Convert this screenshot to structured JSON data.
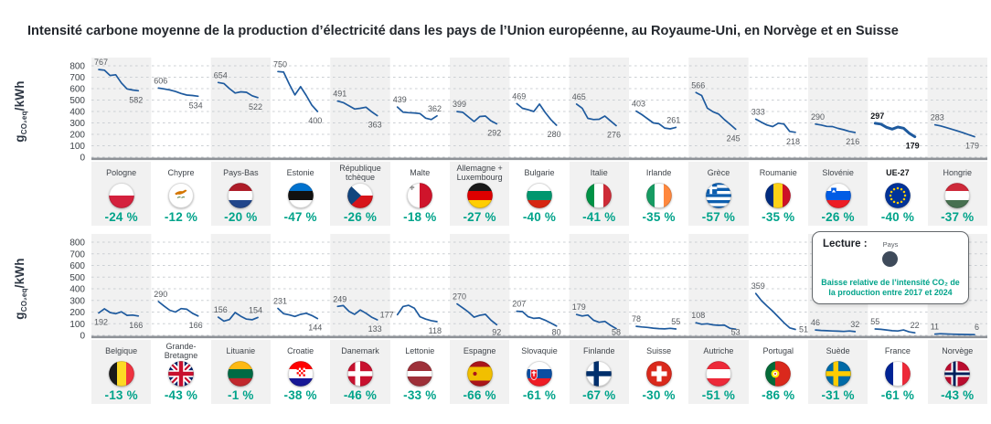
{
  "title": "Intensité carbone moyenne de la production d’électricité dans les pays de l’Union européenne, au Royaume-Uni, en Norvège et en Suisse",
  "y_axis": {
    "prefix": "g",
    "sub": "CO₂eq",
    "suffix": "/kWh"
  },
  "legend": {
    "title": "Lecture :",
    "country_label": "Pays",
    "note_lines": [
      "Baisse relative de l’intensité CO₂ de",
      "la production entre 2017 et 2024"
    ]
  },
  "colors": {
    "line_blue": "#1e5a9e",
    "teal": "#00a38a",
    "stripe": "#f1f1f1",
    "grid": "#ccd0d4",
    "axis": "#8e9297",
    "legend_dot": "#3e4a5a"
  },
  "chart_data": {
    "type": "line",
    "x": [
      2017,
      2018,
      2019,
      2020,
      2021,
      2022,
      2023,
      2024
    ],
    "ylim": [
      0,
      800
    ],
    "y_ticks": [
      0,
      100,
      200,
      300,
      400,
      500,
      600,
      700,
      800
    ],
    "ylabel": "gCO₂eq/kWh",
    "grid": true,
    "rows": [
      {
        "panels": [
          {
            "id": "pologne",
            "name": "Pologne",
            "start": 767,
            "end": 582,
            "change": "-24 %",
            "values": [
              767,
              762,
              715,
              722,
              650,
              598,
              588,
              582
            ],
            "flag": {
              "kind": "h",
              "colors": [
                "#ffffff",
                "#d4213d"
              ]
            }
          },
          {
            "id": "chypre",
            "name": "Chypre",
            "start": 606,
            "end": 534,
            "change": "-12 %",
            "values": [
              606,
              598,
              589,
              575,
              558,
              544,
              540,
              534
            ],
            "flag": {
              "kind": "cyprus",
              "colors": [
                "#ffffff",
                "#d47600",
                "#4f7942"
              ]
            }
          },
          {
            "id": "pays-bas",
            "name": "Pays-Bas",
            "start": 654,
            "end": 522,
            "change": "-20 %",
            "values": [
              654,
              645,
              600,
              562,
              572,
              568,
              538,
              522
            ],
            "flag": {
              "kind": "h",
              "colors": [
                "#ae1c28",
                "#ffffff",
                "#21468b"
              ]
            }
          },
          {
            "id": "estonie",
            "name": "Estonie",
            "start": 750,
            "end": 400,
            "change": "-47 %",
            "values": [
              750,
              745,
              640,
              545,
              618,
              540,
              455,
              400
            ],
            "flag": {
              "kind": "h",
              "colors": [
                "#0072ce",
                "#111111",
                "#ffffff"
              ]
            }
          },
          {
            "id": "republique-tcheque",
            "name": "République\ntchèque",
            "start": 491,
            "end": 363,
            "change": "-26 %",
            "values": [
              491,
              478,
              450,
              422,
              428,
              438,
              398,
              363
            ],
            "flag": {
              "kind": "czech",
              "colors": [
                "#ffffff",
                "#d7141a",
                "#11457e"
              ]
            }
          },
          {
            "id": "malte",
            "name": "Malte",
            "start": 439,
            "end": 362,
            "change": "-18 %",
            "e_pos": "above",
            "values": [
              439,
              394,
              390,
              387,
              382,
              342,
              330,
              362
            ],
            "flag": {
              "kind": "malta",
              "colors": [
                "#ffffff",
                "#cf142b",
                "#9a9a9a"
              ]
            }
          },
          {
            "id": "allemagne-luxembourg",
            "name": "Allemagne +\nLuxembourg",
            "start": 399,
            "end": 292,
            "change": "-27 %",
            "values": [
              399,
              393,
              352,
              312,
              356,
              360,
              318,
              292
            ],
            "flag": {
              "kind": "h",
              "colors": [
                "#1a1a1a",
                "#dd0000",
                "#ffce00"
              ]
            }
          },
          {
            "id": "bulgarie",
            "name": "Bulgarie",
            "start": 469,
            "end": 280,
            "change": "-40 %",
            "values": [
              469,
              428,
              415,
              400,
              465,
              392,
              330,
              280
            ],
            "flag": {
              "kind": "h",
              "colors": [
                "#ffffff",
                "#00966e",
                "#d62612"
              ]
            }
          },
          {
            "id": "italie",
            "name": "Italie",
            "start": 465,
            "end": 276,
            "change": "-41 %",
            "values": [
              465,
              428,
              340,
              330,
              332,
              360,
              318,
              276
            ],
            "flag": {
              "kind": "v",
              "colors": [
                "#009246",
                "#ffffff",
                "#ce2b37"
              ]
            }
          },
          {
            "id": "irlande",
            "name": "Irlande",
            "start": 403,
            "end": 261,
            "change": "-35 %",
            "e_pos": "above",
            "values": [
              403,
              372,
              336,
              300,
              293,
              255,
              248,
              261
            ],
            "flag": {
              "kind": "v",
              "colors": [
                "#169b62",
                "#ffffff",
                "#ff883e"
              ]
            }
          },
          {
            "id": "grece",
            "name": "Grèce",
            "start": 566,
            "end": 245,
            "change": "-57 %",
            "values": [
              566,
              540,
              430,
              398,
              378,
              330,
              288,
              245
            ],
            "flag": {
              "kind": "greece",
              "colors": [
                "#0d5eaf",
                "#ffffff"
              ]
            }
          },
          {
            "id": "roumanie",
            "name": "Roumanie",
            "start": 333,
            "end": 218,
            "change": "-35 %",
            "values": [
              333,
              306,
              282,
              268,
              298,
              290,
              226,
              218
            ],
            "flag": {
              "kind": "v",
              "colors": [
                "#002b7f",
                "#fcd116",
                "#ce1126"
              ]
            }
          },
          {
            "id": "slovenie",
            "name": "Slovénie",
            "start": 290,
            "end": 216,
            "change": "-26 %",
            "values": [
              290,
              282,
              270,
              268,
              252,
              240,
              226,
              216
            ],
            "flag": {
              "kind": "slovenia",
              "colors": [
                "#ffffff",
                "#005ce5",
                "#ed1c24"
              ]
            }
          },
          {
            "id": "ue-27",
            "name": "UE-27",
            "start": 297,
            "end": 179,
            "change": "-40 %",
            "bold": true,
            "values": [
              297,
              290,
              262,
              246,
              264,
              254,
              210,
              179
            ],
            "flag": {
              "kind": "eu",
              "colors": [
                "#003399",
                "#ffcc00"
              ]
            }
          },
          {
            "id": "hongrie",
            "name": "Hongrie",
            "start": 283,
            "end": 179,
            "change": "-37 %",
            "values": [
              283,
              274,
              259,
              245,
              230,
              214,
              196,
              179
            ],
            "flag": {
              "kind": "h",
              "colors": [
                "#ce2939",
                "#ffffff",
                "#477050"
              ]
            }
          }
        ]
      },
      {
        "panels": [
          {
            "id": "belgique",
            "name": "Belgique",
            "start": 192,
            "end": 166,
            "change": "-13 %",
            "s_pos": "below",
            "values": [
              192,
              228,
              196,
              186,
              202,
              172,
              174,
              166
            ],
            "flag": {
              "kind": "v",
              "colors": [
                "#1a1a1a",
                "#fdda25",
                "#ef3340"
              ]
            }
          },
          {
            "id": "grande-bretagne",
            "name": "Grande-\nBretagne",
            "start": 290,
            "end": 166,
            "change": "-43 %",
            "values": [
              290,
              252,
              216,
              200,
              230,
              224,
              190,
              166
            ],
            "flag": {
              "kind": "uk",
              "colors": [
                "#012169",
                "#ffffff",
                "#c8102e"
              ]
            }
          },
          {
            "id": "lituanie",
            "name": "Lituanie",
            "start": 156,
            "end": 154,
            "change": "-1 %",
            "e_pos": "above",
            "values": [
              156,
              122,
              136,
              196,
              164,
              140,
              134,
              154
            ],
            "flag": {
              "kind": "h",
              "colors": [
                "#fdb913",
                "#006a44",
                "#c1272d"
              ]
            }
          },
          {
            "id": "croatie",
            "name": "Croatie",
            "start": 231,
            "end": 144,
            "change": "-38 %",
            "values": [
              231,
              186,
              176,
              162,
              180,
              190,
              170,
              144
            ],
            "flag": {
              "kind": "croatia",
              "colors": [
                "#ff0000",
                "#ffffff",
                "#171796"
              ]
            }
          },
          {
            "id": "danemark",
            "name": "Danemark",
            "start": 249,
            "end": 133,
            "change": "-46 %",
            "values": [
              249,
              256,
              206,
              180,
              218,
              190,
              156,
              133
            ],
            "flag": {
              "kind": "nordic",
              "colors": [
                "#c8102e",
                "#ffffff"
              ]
            }
          },
          {
            "id": "lettonie",
            "name": "Lettonie",
            "start": 177,
            "end": 118,
            "change": "-33 %",
            "s_pos": "left",
            "values": [
              177,
              248,
              258,
              234,
              160,
              140,
              126,
              118
            ],
            "flag": {
              "kind": "h",
              "weights": [
                2,
                1,
                2
              ],
              "colors": [
                "#9e3039",
                "#ffffff",
                "#9e3039"
              ]
            }
          },
          {
            "id": "espagne",
            "name": "Espagne",
            "start": 270,
            "end": 92,
            "change": "-66 %",
            "values": [
              270,
              236,
              200,
              156,
              172,
              180,
              130,
              92
            ],
            "flag": {
              "kind": "spain",
              "colors": [
                "#aa151b",
                "#f1bf00"
              ]
            }
          },
          {
            "id": "slovaquie",
            "name": "Slovaquie",
            "start": 207,
            "end": 80,
            "change": "-61 %",
            "values": [
              207,
              204,
              160,
              146,
              150,
              130,
              106,
              80
            ],
            "flag": {
              "kind": "slovakia",
              "colors": [
                "#ffffff",
                "#0b4ea2",
                "#ee1c25"
              ]
            }
          },
          {
            "id": "finlande",
            "name": "Finlande",
            "start": 179,
            "end": 58,
            "change": "-67 %",
            "values": [
              179,
              166,
              174,
              130,
              112,
              120,
              86,
              58
            ],
            "flag": {
              "kind": "nordic",
              "colors": [
                "#ffffff",
                "#002f6c"
              ]
            }
          },
          {
            "id": "suisse",
            "name": "Suisse",
            "start": 78,
            "end": 55,
            "change": "-30 %",
            "e_pos": "above",
            "values": [
              78,
              72,
              68,
              62,
              58,
              56,
              60,
              55
            ],
            "flag": {
              "kind": "swiss",
              "colors": [
                "#da291c",
                "#ffffff"
              ]
            }
          },
          {
            "id": "autriche",
            "name": "Autriche",
            "start": 108,
            "end": 53,
            "change": "-51 %",
            "values": [
              108,
              96,
              100,
              90,
              86,
              88,
              60,
              53
            ],
            "flag": {
              "kind": "h",
              "colors": [
                "#ed2939",
                "#ffffff",
                "#ed2939"
              ]
            }
          },
          {
            "id": "portugal",
            "name": "Portugal",
            "start": 359,
            "end": 51,
            "change": "-86 %",
            "e_pos": "right",
            "values": [
              359,
              298,
              252,
              208,
              158,
              108,
              64,
              51
            ],
            "flag": {
              "kind": "portugal",
              "colors": [
                "#046a38",
                "#da291c",
                "#ffe900"
              ]
            }
          },
          {
            "id": "suede",
            "name": "Suède",
            "start": 46,
            "end": 32,
            "change": "-31 %",
            "e_pos": "above",
            "values": [
              46,
              42,
              40,
              38,
              36,
              34,
              38,
              32
            ],
            "flag": {
              "kind": "nordic",
              "colors": [
                "#006aa7",
                "#fecc02"
              ]
            }
          },
          {
            "id": "france",
            "name": "France",
            "start": 55,
            "end": 22,
            "change": "-61 %",
            "e_pos": "above",
            "values": [
              55,
              52,
              46,
              40,
              38,
              46,
              30,
              22
            ],
            "flag": {
              "kind": "v",
              "colors": [
                "#002395",
                "#ffffff",
                "#ed2939"
              ]
            }
          },
          {
            "id": "norvege",
            "name": "Norvège",
            "start": 11,
            "end": 6,
            "change": "-43 %",
            "e_pos": "above",
            "values": [
              11,
              14,
              12,
              10,
              9,
              8,
              7,
              6
            ],
            "flag": {
              "kind": "norway",
              "colors": [
                "#ba0c2f",
                "#ffffff",
                "#00205b"
              ]
            }
          }
        ]
      }
    ]
  }
}
